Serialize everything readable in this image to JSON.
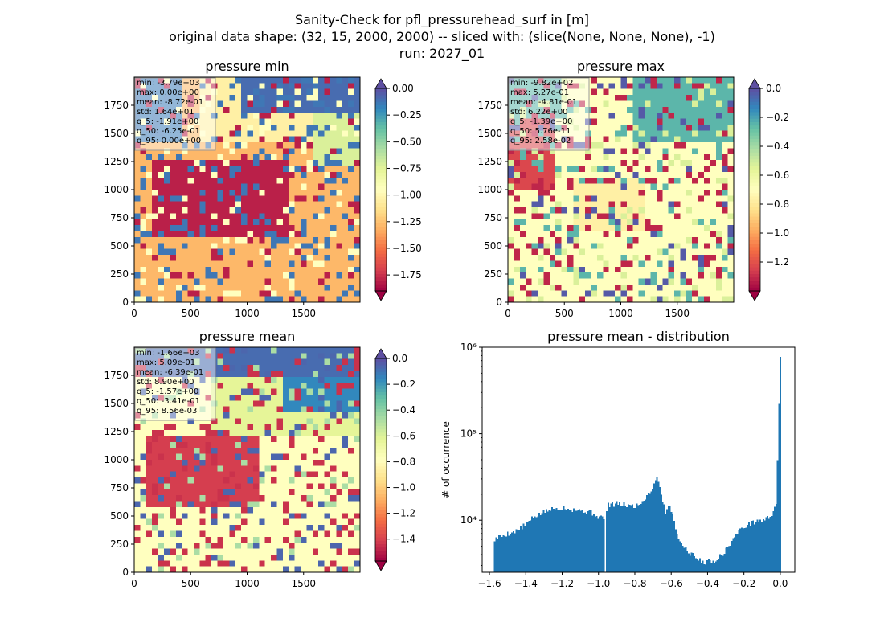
{
  "figure": {
    "title_lines": [
      "Sanity-Check for pfl_pressurehead_surf in [m]",
      "original data shape: (32, 15, 2000, 2000) -- sliced with: (slice(None, None, None), -1)",
      "run: 2027_01"
    ]
  },
  "chart_data": [
    {
      "type": "heatmap",
      "title": "pressure min",
      "xlim": [
        0,
        2000
      ],
      "ylim": [
        0,
        2000
      ],
      "xticks": [
        "0",
        "500",
        "1000",
        "1500"
      ],
      "yticks": [
        "0",
        "250",
        "500",
        "750",
        "1000",
        "1250",
        "1500",
        "1750"
      ],
      "colormap": "Spectral",
      "colorbar": {
        "range": [
          -1.9,
          0.0
        ],
        "ticks": [
          "0.00",
          "−0.25",
          "−0.50",
          "−0.75",
          "−1.00",
          "−1.25",
          "−1.50",
          "−1.75"
        ],
        "tick_values": [
          0,
          -0.25,
          -0.5,
          -0.75,
          -1.0,
          -1.25,
          -1.5,
          -1.75
        ],
        "extend": "both"
      },
      "stats": [
        "min: -3.79e+03",
        "max: 0.00e+00",
        "mean: -8.72e-01",
        "std: 1.64e+01",
        "q_5: -1.91e+00",
        "q_50: -6.25e-01",
        "q_95: 0.00e+00"
      ]
    },
    {
      "type": "heatmap",
      "title": "pressure max",
      "xlim": [
        0,
        2000
      ],
      "ylim": [
        0,
        2000
      ],
      "xticks": [
        "0",
        "500",
        "1000",
        "1500"
      ],
      "yticks": [
        "0",
        "250",
        "500",
        "750",
        "1000",
        "1250",
        "1500",
        "1750"
      ],
      "colormap": "Spectral",
      "colorbar": {
        "range": [
          -1.4,
          0.0
        ],
        "ticks": [
          "0.0",
          "−0.2",
          "−0.4",
          "−0.6",
          "−0.8",
          "−1.0",
          "−1.2"
        ],
        "tick_values": [
          0,
          -0.2,
          -0.4,
          -0.6,
          -0.8,
          -1.0,
          -1.2
        ],
        "extend": "both"
      },
      "stats": [
        "min: -9.82e+02",
        "max: 5.27e-01",
        "mean: -4.81e-01",
        "std: 6.22e+00",
        "q_5: -1.39e+00",
        "q_50: 5.76e-11",
        "q_95: 2.58e-02"
      ]
    },
    {
      "type": "heatmap",
      "title": "pressure mean",
      "xlim": [
        0,
        2000
      ],
      "ylim": [
        0,
        2000
      ],
      "xticks": [
        "0",
        "500",
        "1000",
        "1500"
      ],
      "yticks": [
        "0",
        "250",
        "500",
        "750",
        "1000",
        "1250",
        "1500",
        "1750"
      ],
      "colormap": "Spectral",
      "colorbar": {
        "range": [
          -1.57,
          0.0
        ],
        "ticks": [
          "0.0",
          "−0.2",
          "−0.4",
          "−0.6",
          "−0.8",
          "−1.0",
          "−1.2",
          "−1.4"
        ],
        "tick_values": [
          0,
          -0.2,
          -0.4,
          -0.6,
          -0.8,
          -1.0,
          -1.2,
          -1.4
        ],
        "extend": "both"
      },
      "stats": [
        "min: -1.66e+03",
        "max: 5.09e-01",
        "mean: -6.39e-01",
        "std: 8.90e+00",
        "q_5: -1.57e+00",
        "q_50: -3.41e-01",
        "q_95: 8.56e-03"
      ]
    },
    {
      "type": "bar",
      "title": "pressure mean - distribution",
      "ylabel": "# of occurrence",
      "yscale": "log",
      "ylim": [
        2500,
        1000000
      ],
      "xlim": [
        -1.64,
        0.08
      ],
      "xticks": [
        "−1.6",
        "−1.4",
        "−1.2",
        "−1.0",
        "−0.8",
        "−0.6",
        "−0.4",
        "−0.2",
        "0.0"
      ],
      "xtick_values": [
        -1.6,
        -1.4,
        -1.2,
        -1.0,
        -0.8,
        -0.6,
        -0.4,
        -0.2,
        0.0
      ],
      "yticks": [
        "10⁴",
        "10⁵",
        "10⁶"
      ],
      "ytick_values": [
        10000,
        100000,
        1000000
      ],
      "color": "#1f77b4",
      "profile_x": [
        -1.575,
        -1.56,
        -1.5,
        -1.45,
        -1.4,
        -1.35,
        -1.3,
        -1.25,
        -1.2,
        -1.15,
        -1.1,
        -1.05,
        -1.0,
        -0.96,
        -0.95,
        -0.9,
        -0.85,
        -0.8,
        -0.76,
        -0.73,
        -0.7,
        -0.68,
        -0.665,
        -0.65,
        -0.63,
        -0.61,
        -0.58,
        -0.55,
        -0.5,
        -0.45,
        -0.42,
        -0.4,
        -0.35,
        -0.3,
        -0.25,
        -0.2,
        -0.15,
        -0.1,
        -0.05,
        -0.02,
        0.0,
        0.005
      ],
      "profile_y": [
        5800,
        6200,
        7000,
        7500,
        9000,
        11000,
        12500,
        13500,
        14000,
        13500,
        13000,
        12500,
        11000,
        10500,
        15000,
        15500,
        15000,
        14500,
        16000,
        20000,
        24000,
        32000,
        27000,
        18000,
        12000,
        16000,
        9000,
        5500,
        4200,
        3500,
        3300,
        3300,
        3500,
        4500,
        6500,
        8500,
        9500,
        10000,
        11000,
        17000,
        770000,
        600000
      ],
      "gap_at": -0.96
    }
  ]
}
